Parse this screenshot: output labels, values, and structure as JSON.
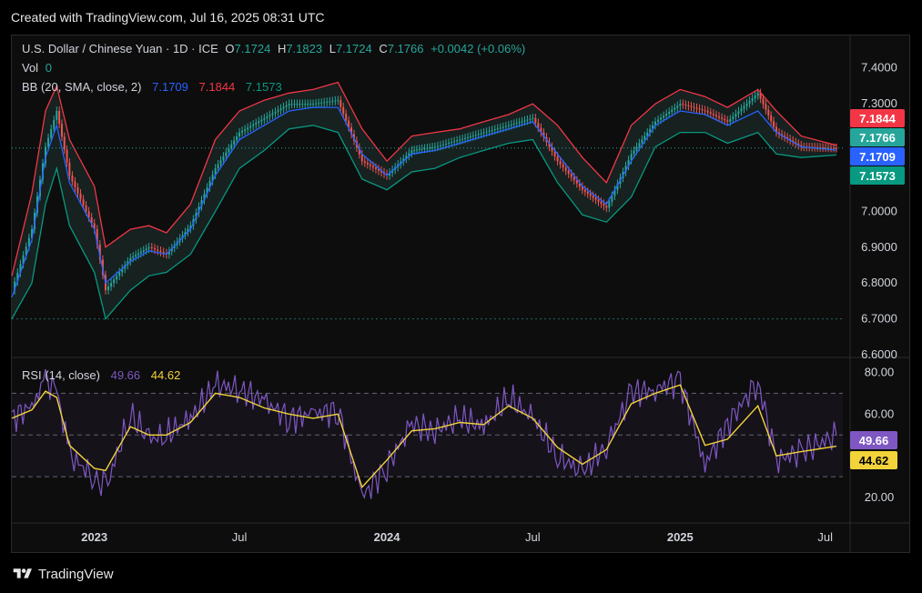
{
  "header": {
    "created_text": "Created with TradingView.com, Jul 16, 2025 08:31 UTC"
  },
  "legend": {
    "symbol": "U.S. Dollar / Chinese Yuan · 1D · ICE",
    "o_label": "O",
    "o_value": "7.1724",
    "h_label": "H",
    "h_value": "7.1823",
    "l_label": "L",
    "l_value": "7.1724",
    "c_label": "C",
    "c_value": "7.1766",
    "change": "+0.0042 (+0.06%)",
    "vol_label": "Vol",
    "vol_value": "0",
    "bb_label": "BB (20, SMA, close, 2)",
    "bb_mid": "7.1709",
    "bb_upper": "7.1844",
    "bb_lower": "7.1573",
    "rsi_label": "RSI (14, close)",
    "rsi_value": "49.66",
    "rsi_ma": "44.62"
  },
  "colors": {
    "up": "#26a69a",
    "down": "#ef5350",
    "bb_upper": "#f23645",
    "bb_mid": "#2962ff",
    "bb_lower": "#089981",
    "rsi": "#7e57c2",
    "rsi_ma": "#f2d33a",
    "fill": "#1b2b2a"
  },
  "chart_data": [
    {
      "type": "line",
      "title": "U.S. Dollar / Chinese Yuan · 1D · ICE",
      "x": [
        "2022-09-20",
        "2022-10-15",
        "2022-11-01",
        "2022-11-15",
        "2022-12-01",
        "2023-01-01",
        "2023-01-15",
        "2023-02-15",
        "2023-03-10",
        "2023-04-01",
        "2023-05-01",
        "2023-06-01",
        "2023-07-01",
        "2023-08-01",
        "2023-09-01",
        "2023-10-01",
        "2023-11-01",
        "2023-12-01",
        "2024-01-01",
        "2024-02-01",
        "2024-03-01",
        "2024-04-01",
        "2024-05-01",
        "2024-06-01",
        "2024-07-01",
        "2024-08-01",
        "2024-09-01",
        "2024-10-01",
        "2024-11-01",
        "2024-12-01",
        "2025-01-01",
        "2025-02-01",
        "2025-03-01",
        "2025-04-08",
        "2025-05-01",
        "2025-06-01",
        "2025-07-15"
      ],
      "series": [
        {
          "name": "close",
          "values": [
            6.78,
            6.95,
            7.18,
            7.28,
            7.1,
            6.95,
            6.78,
            6.87,
            6.9,
            6.88,
            6.96,
            7.12,
            7.22,
            7.26,
            7.3,
            7.3,
            7.31,
            7.14,
            7.1,
            7.17,
            7.18,
            7.2,
            7.22,
            7.24,
            7.26,
            7.14,
            7.06,
            7.01,
            7.16,
            7.25,
            7.3,
            7.28,
            7.25,
            7.33,
            7.22,
            7.18,
            7.1766
          ]
        },
        {
          "name": "BB upper",
          "values": [
            6.82,
            7.05,
            7.28,
            7.35,
            7.2,
            7.07,
            6.9,
            6.95,
            6.96,
            6.94,
            7.02,
            7.2,
            7.28,
            7.31,
            7.33,
            7.34,
            7.36,
            7.23,
            7.14,
            7.21,
            7.22,
            7.23,
            7.25,
            7.27,
            7.3,
            7.24,
            7.15,
            7.08,
            7.24,
            7.3,
            7.34,
            7.32,
            7.29,
            7.34,
            7.28,
            7.21,
            7.1844
          ]
        },
        {
          "name": "BB mid",
          "values": [
            6.76,
            6.92,
            7.15,
            7.24,
            7.08,
            6.95,
            6.8,
            6.86,
            6.89,
            6.88,
            6.95,
            7.1,
            7.2,
            7.24,
            7.28,
            7.29,
            7.29,
            7.16,
            7.1,
            7.16,
            7.17,
            7.19,
            7.21,
            7.23,
            7.25,
            7.16,
            7.07,
            7.02,
            7.14,
            7.24,
            7.28,
            7.27,
            7.24,
            7.28,
            7.22,
            7.18,
            7.1709
          ]
        },
        {
          "name": "BB lower",
          "values": [
            6.7,
            6.8,
            7.02,
            7.12,
            6.96,
            6.83,
            6.7,
            6.78,
            6.82,
            6.83,
            6.88,
            7.0,
            7.12,
            7.17,
            7.23,
            7.24,
            7.22,
            7.09,
            7.06,
            7.11,
            7.12,
            7.15,
            7.17,
            7.19,
            7.2,
            7.08,
            6.99,
            6.97,
            7.04,
            7.18,
            7.22,
            7.22,
            7.19,
            7.22,
            7.16,
            7.15,
            7.1573
          ]
        }
      ],
      "ylim": [
        6.6,
        7.45
      ],
      "yticks": [
        "7.4000",
        "7.3000",
        "7.2000",
        "7.1000",
        "7.0000",
        "6.9000",
        "6.8000",
        "6.7000",
        "6.6000"
      ],
      "price_labels": [
        "7.1844",
        "7.1766",
        "7.1709",
        "7.1573"
      ]
    },
    {
      "type": "line",
      "title": "RSI (14, close)",
      "x": [
        "2022-09-20",
        "2022-10-15",
        "2022-11-01",
        "2022-11-15",
        "2022-12-01",
        "2023-01-01",
        "2023-01-15",
        "2023-02-15",
        "2023-03-10",
        "2023-04-01",
        "2023-05-01",
        "2023-06-01",
        "2023-07-01",
        "2023-08-01",
        "2023-09-01",
        "2023-10-01",
        "2023-11-01",
        "2023-12-01",
        "2024-01-01",
        "2024-02-01",
        "2024-03-01",
        "2024-04-01",
        "2024-05-01",
        "2024-06-01",
        "2024-07-01",
        "2024-08-01",
        "2024-09-01",
        "2024-10-01",
        "2024-11-01",
        "2024-12-01",
        "2025-01-01",
        "2025-02-01",
        "2025-03-01",
        "2025-04-08",
        "2025-05-01",
        "2025-06-01",
        "2025-07-15"
      ],
      "series": [
        {
          "name": "RSI",
          "values": [
            58,
            64,
            76,
            72,
            40,
            30,
            24,
            60,
            48,
            50,
            58,
            74,
            72,
            66,
            58,
            60,
            62,
            20,
            35,
            55,
            52,
            58,
            54,
            68,
            58,
            40,
            32,
            45,
            70,
            72,
            76,
            36,
            55,
            76,
            38,
            42,
            49.66
          ]
        },
        {
          "name": "RSI MA",
          "values": [
            58,
            62,
            71,
            68,
            45,
            34,
            33,
            54,
            50,
            50,
            56,
            70,
            68,
            63,
            60,
            58,
            60,
            25,
            38,
            52,
            53,
            56,
            55,
            64,
            58,
            44,
            36,
            43,
            65,
            70,
            74,
            45,
            48,
            64,
            40,
            42,
            44.62
          ]
        }
      ],
      "ylim": [
        10,
        85
      ],
      "yticks": [
        "80.00",
        "60.00",
        "20.00"
      ],
      "levels": [
        70,
        50,
        30
      ],
      "price_labels": [
        "49.66",
        "44.62"
      ]
    }
  ],
  "x_axis": {
    "ticks": [
      {
        "label": "2023",
        "date": "2023-01-01",
        "bold": true
      },
      {
        "label": "Jul",
        "date": "2023-07-01",
        "bold": false
      },
      {
        "label": "2024",
        "date": "2024-01-01",
        "bold": true
      },
      {
        "label": "Jul",
        "date": "2024-07-01",
        "bold": false
      },
      {
        "label": "2025",
        "date": "2025-01-01",
        "bold": true
      },
      {
        "label": "Jul",
        "date": "2025-07-01",
        "bold": false
      }
    ]
  },
  "footer": {
    "brand": "TradingView",
    "logo_icon": "tradingview-logo-icon"
  }
}
